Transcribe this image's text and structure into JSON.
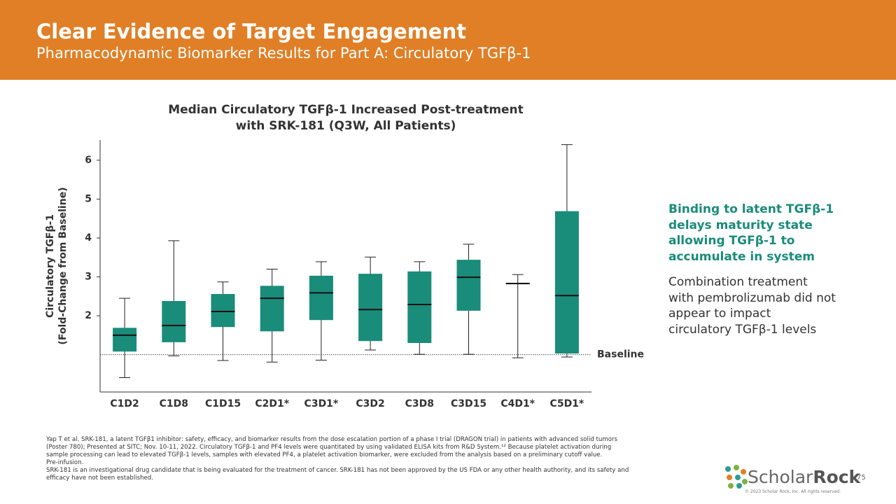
{
  "header": {
    "title": "Clear Evidence of Target Engagement",
    "subtitle": "Pharmacodynamic Biomarker Results for Part A: Circulatory TGFβ-1"
  },
  "chart_data": {
    "type": "box",
    "title": [
      "Median Circulatory TGFβ-1 Increased Post-treatment",
      "with SRK-181 (Q3W, All Patients)"
    ],
    "ylabel": [
      "Circulatory TGFβ-1",
      "(Fold-Change from Baseline)"
    ],
    "categories": [
      "C1D2",
      "C1D8",
      "C1D15",
      "C2D1*",
      "C3D1*",
      "C3D2",
      "C3D8",
      "C3D15",
      "C4D1*",
      "C5D1*"
    ],
    "color": "#1a8c7a",
    "whisker_low": [
      0.41,
      0.97,
      0.85,
      0.81,
      0.86,
      1.12,
      1.01,
      1.01,
      0.92,
      0.94
    ],
    "q1": [
      1.08,
      1.32,
      1.71,
      1.6,
      1.89,
      1.35,
      1.3,
      2.13,
      2.81,
      1.03
    ],
    "median": [
      1.5,
      1.75,
      2.11,
      2.45,
      2.59,
      2.16,
      2.29,
      2.99,
      2.83,
      2.52
    ],
    "q3": [
      1.69,
      2.38,
      2.56,
      2.77,
      3.03,
      3.08,
      3.14,
      3.44,
      2.84,
      4.69
    ],
    "whisker_high": [
      2.45,
      3.93,
      2.87,
      3.2,
      3.39,
      3.51,
      3.39,
      3.84,
      3.06,
      6.4
    ],
    "ylim": [
      0.04,
      6.52
    ],
    "yticks": [
      2,
      3,
      4,
      5,
      6
    ],
    "baseline": {
      "value": 1,
      "label": "Baseline"
    }
  },
  "side_text": {
    "highlight": [
      "Binding to latent TGFβ-1",
      "delays maturity state",
      "allowing TGFβ-1 to",
      "accumulate in system"
    ],
    "body": [
      "Combination treatment",
      "with pembrolizumab did not",
      "appear to impact",
      "circulatory TGFβ-1 levels"
    ]
  },
  "footnotes": [
    "Yap T et al. SRK-181, a latent TGFβ1 inhibitor: safety, efficacy, and biomarker results from the dose escalation portion of a phase I trial (DRAGON trial) in patients with advanced solid tumors",
    "(Poster 780); Presented at SITC; Nov. 10-11, 2022.  Circulatory TGFβ-1 and PF4 levels were quantitated by using validated ELISA kits from R&D System.¹² Because platelet activation during",
    "sample processing can lead to elevated TGFβ-1 levels, samples with elevated PF4, a platelet activation biomarker, were excluded from the analysis based on a preliminary cutoff value.",
    "Pre-infusion.",
    "SRK-181 is an investigational drug candidate that is being evaluated for the treatment of cancer. SRK-181 has not been approved by the US FDA or any other health authority, and its safety and",
    "efficacy have not been established."
  ],
  "logo": {
    "name": "Scholar",
    "bold": "Rock"
  },
  "copyright": "© 2023 Scholar Rock, Inc. All rights reserved.",
  "page_number": "75"
}
